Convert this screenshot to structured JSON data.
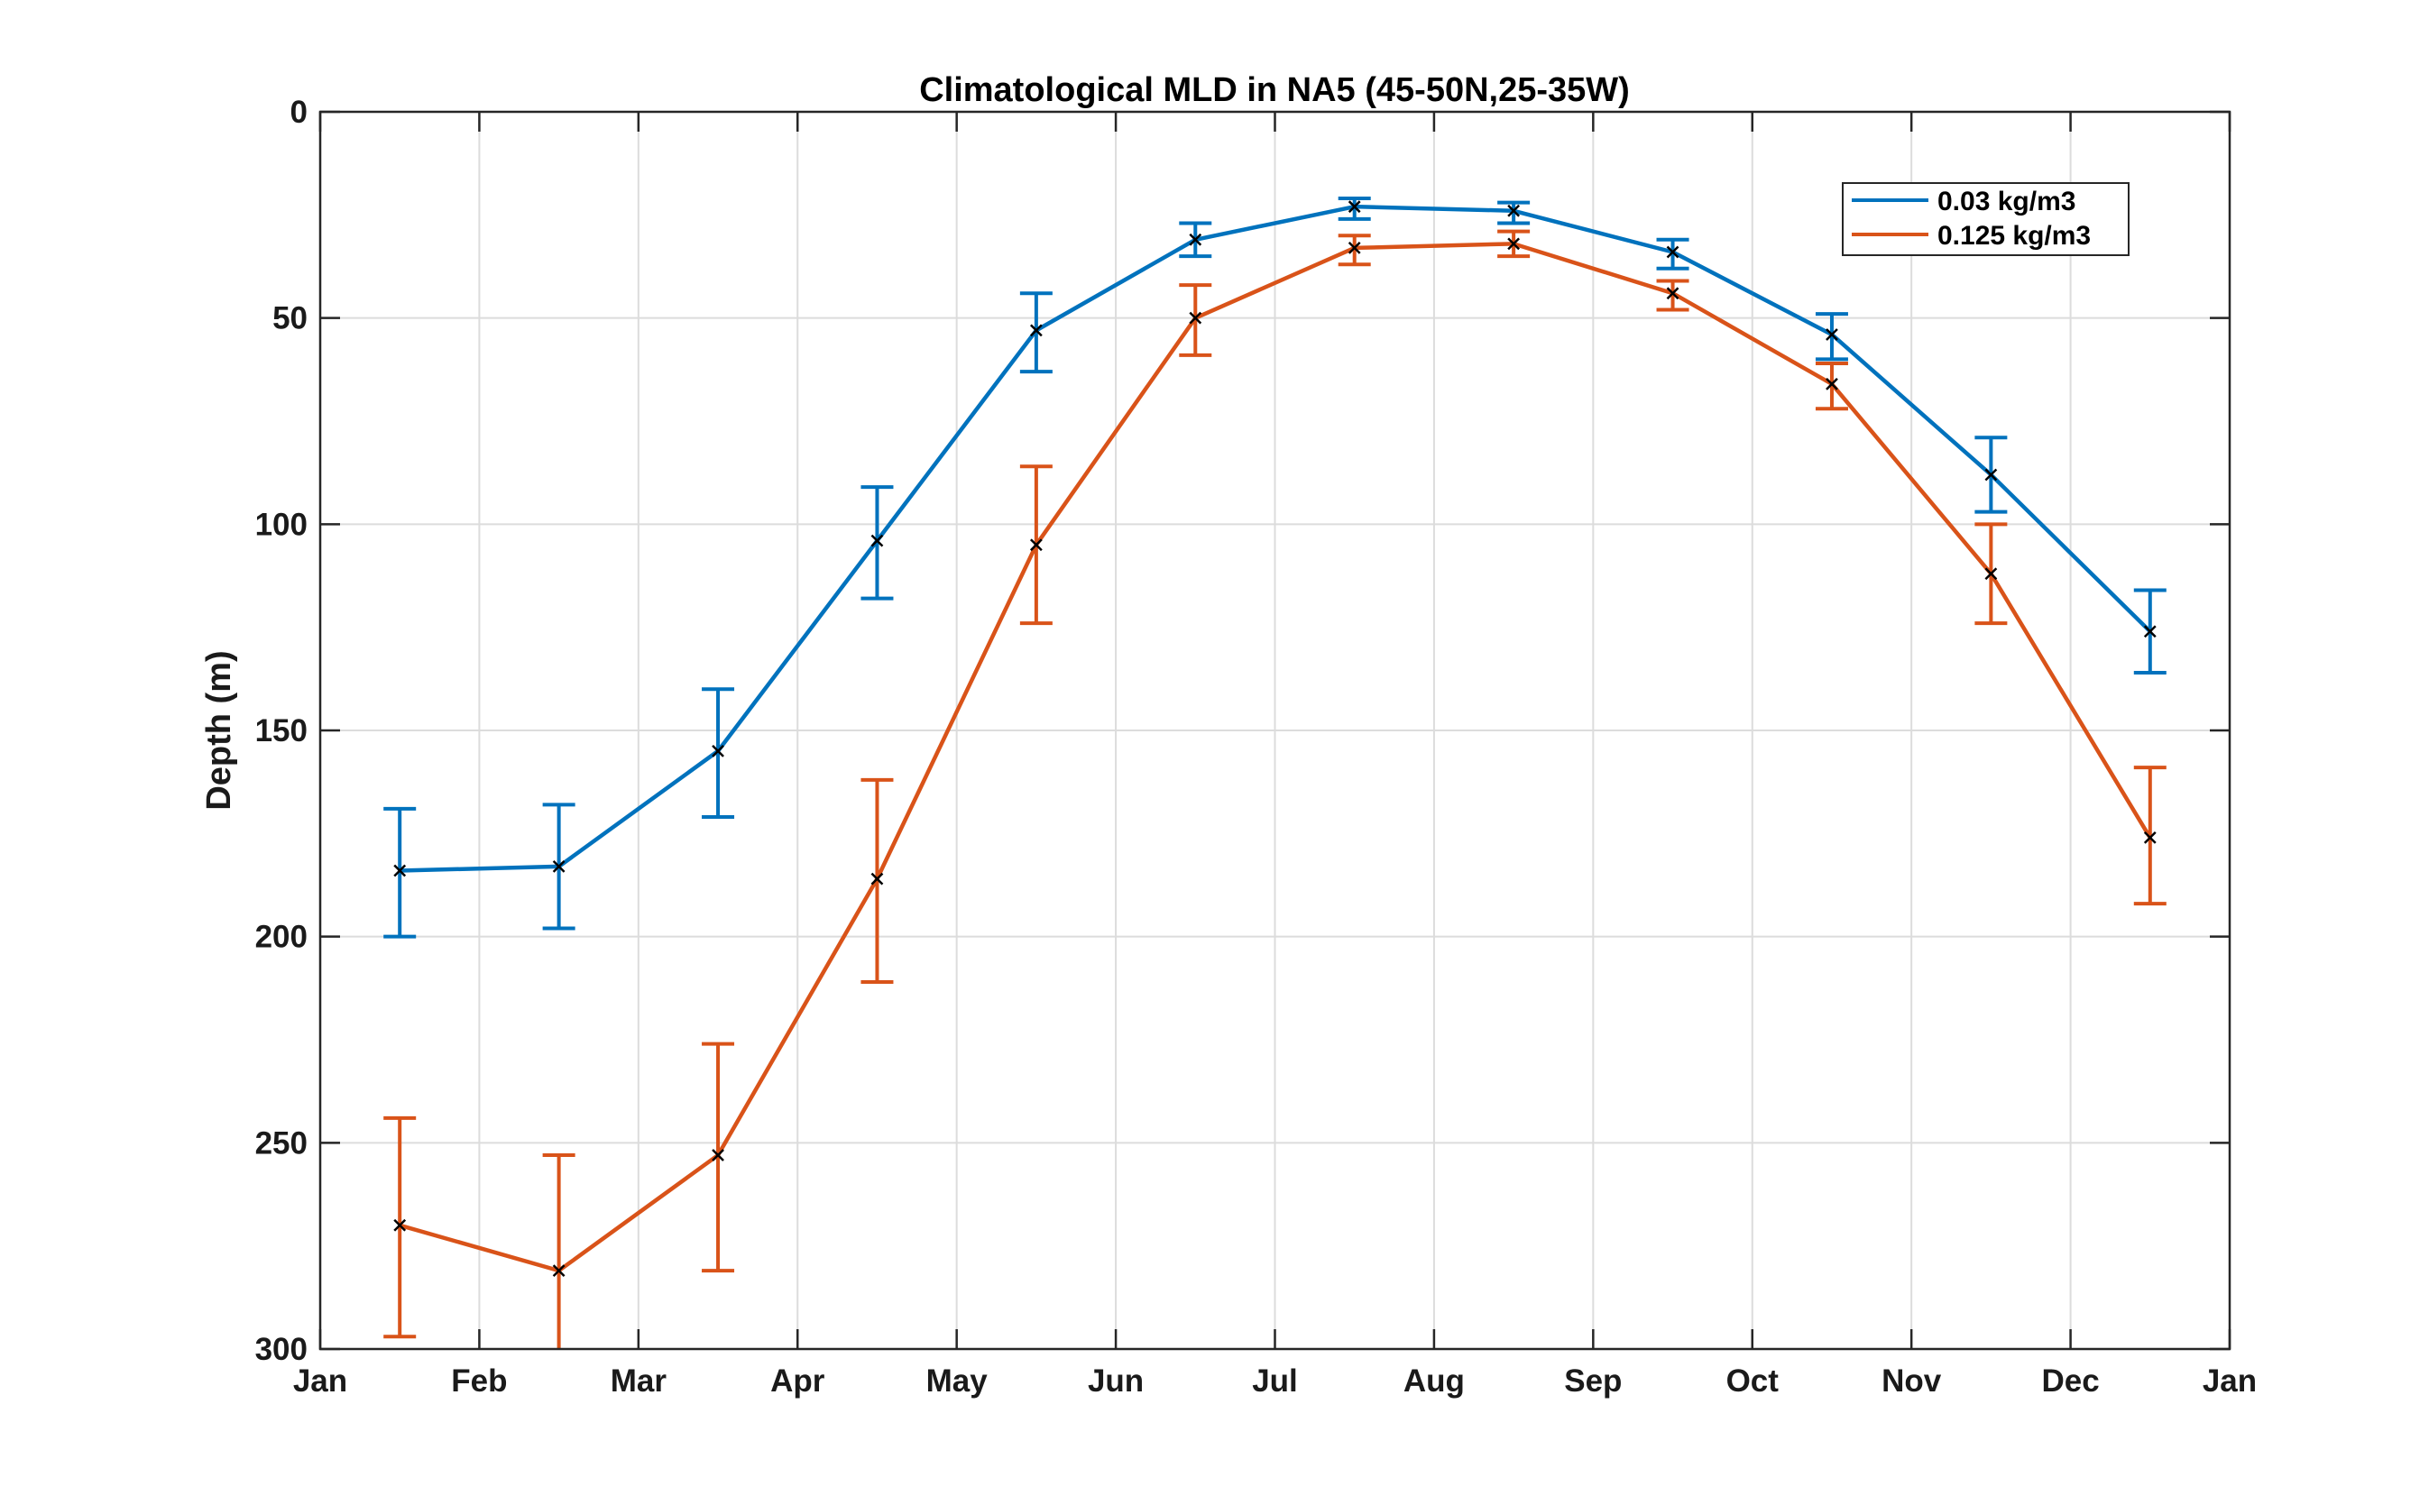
{
  "chart_data": {
    "type": "line",
    "title": "Climatological MLD in NA5 (45-50N,25-35W)",
    "xlabel": "",
    "ylabel": "Depth (m)",
    "ylim": [
      0,
      300
    ],
    "y_reversed": true,
    "y_ticks": [
      "0",
      "50",
      "100",
      "150",
      "200",
      "250",
      "300"
    ],
    "x_ticks": [
      "Jan",
      "Feb",
      "Mar",
      "Apr",
      "May",
      "Jun",
      "Jul",
      "Aug",
      "Sep",
      "Oct",
      "Nov",
      "Dec",
      "Jan"
    ],
    "grid": true,
    "legend_position": "top-right",
    "marker": "x",
    "marker_color": "#000000",
    "series": [
      {
        "name": "0.03 kg/m3",
        "color": "#0072BD",
        "values": [
          184,
          183,
          155,
          104,
          53,
          31,
          23,
          24,
          34,
          54,
          88,
          126
        ],
        "error_low": [
          169,
          168,
          140,
          91,
          44,
          27,
          21,
          22,
          31,
          49,
          79,
          116
        ],
        "error_high": [
          200,
          198,
          171,
          118,
          63,
          35,
          26,
          27,
          38,
          60,
          97,
          136
        ]
      },
      {
        "name": "0.125 kg/m3",
        "color": "#D95319",
        "values": [
          270,
          281,
          253,
          186,
          105,
          50,
          33,
          32,
          44,
          66,
          112,
          176
        ],
        "error_low": [
          244,
          253,
          226,
          162,
          86,
          42,
          30,
          29,
          41,
          61,
          100,
          159
        ],
        "error_high": [
          297,
          310,
          281,
          211,
          124,
          59,
          37,
          35,
          48,
          72,
          124,
          192
        ]
      }
    ]
  }
}
